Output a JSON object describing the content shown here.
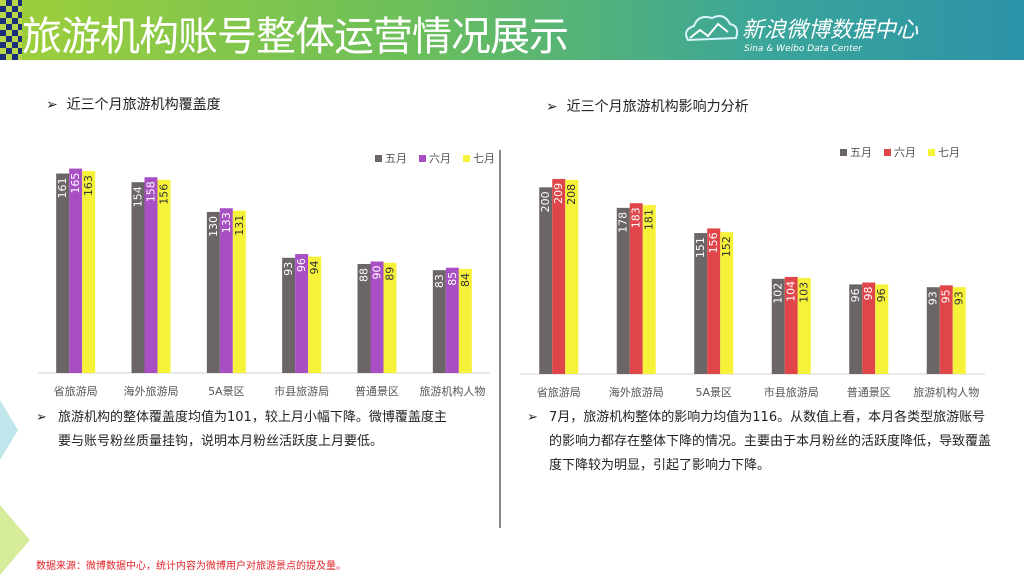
{
  "header": {
    "title": "旅游机构账号整体运营情况展示",
    "logo_cn": "新浪微博数据中心",
    "logo_en": "Sina & Weibo Data Center"
  },
  "left": {
    "heading": "近三个月旅游机构覆盖度",
    "summary": "旅游机构的整体覆盖度均值为101，较上月小幅下降。微博覆盖度主要与账号粉丝质量挂钩，说明本月粉丝活跃度上月要低。"
  },
  "right": {
    "heading": "近三个月旅游机构影响力分析",
    "summary": "7月，旅游机构整体的影响力均值为116。从数值上看，本月各类型旅游账号的影响力都存在整体下降的情况。主要由于本月粉丝的活跃度降低，导致覆盖度下降较为明显，引起了影响力下降。"
  },
  "footer": {
    "source": "数据来源：微博数据中心，统计内容为微博用户对旅游景点的提及量。"
  },
  "chart_data": [
    {
      "type": "bar",
      "categories": [
        "省旅游局",
        "海外旅游局",
        "5A景区",
        "市县旅游局",
        "普通景区",
        "旅游机构人物"
      ],
      "series": [
        {
          "name": "五月",
          "values": [
            161,
            154,
            130,
            93,
            88,
            83
          ],
          "color": "#6b6565"
        },
        {
          "name": "六月",
          "values": [
            165,
            158,
            133,
            96,
            90,
            85
          ],
          "color": "#a94fc4"
        },
        {
          "name": "七月",
          "values": [
            163,
            156,
            131,
            94,
            89,
            84
          ],
          "color": "#f6f23a"
        }
      ],
      "ylim": [
        0,
        180
      ],
      "grid": false,
      "legend": "top-right"
    },
    {
      "type": "bar",
      "categories": [
        "省旅游局",
        "海外旅游局",
        "5A景区",
        "市县旅游局",
        "普通景区",
        "旅游机构人物"
      ],
      "series": [
        {
          "name": "五月",
          "values": [
            200,
            178,
            151,
            102,
            96,
            93
          ],
          "color": "#6b6565"
        },
        {
          "name": "六月",
          "values": [
            209,
            183,
            156,
            104,
            98,
            95
          ],
          "color": "#e0454a"
        },
        {
          "name": "七月",
          "values": [
            208,
            181,
            152,
            103,
            96,
            93
          ],
          "color": "#f6f23a"
        }
      ],
      "ylim": [
        0,
        240
      ],
      "grid": false,
      "legend": "top-right"
    }
  ]
}
